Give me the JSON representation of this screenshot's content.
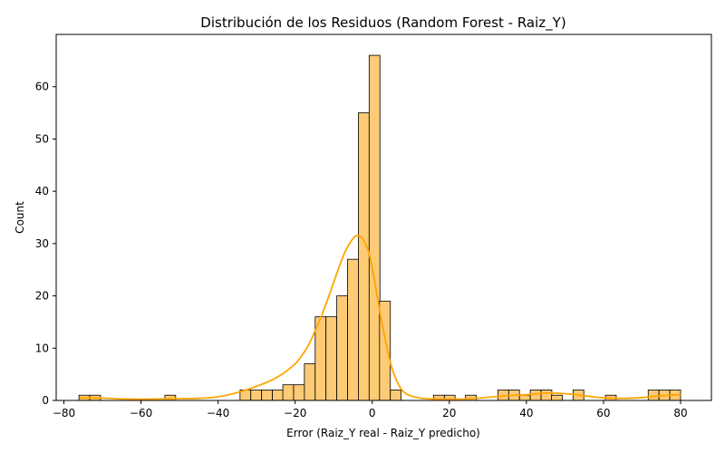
{
  "chart_data": {
    "type": "bar",
    "title": "Distribución de los Residuos (Random Forest - Raiz_Y)",
    "xlabel": "Error (Raiz_Y real - Raiz_Y predicho)",
    "ylabel": "Count",
    "xlim": [
      -82,
      88
    ],
    "ylim": [
      0,
      70
    ],
    "x_ticks": [
      -80,
      -60,
      -40,
      -20,
      0,
      20,
      40,
      60,
      80
    ],
    "y_ticks": [
      0,
      10,
      20,
      30,
      40,
      50,
      60
    ],
    "bin_width": 2.8,
    "bins": [
      {
        "x0": -76.1,
        "count": 1
      },
      {
        "x0": -73.3,
        "count": 1
      },
      {
        "x0": -53.8,
        "count": 1
      },
      {
        "x0": -34.3,
        "count": 2
      },
      {
        "x0": -31.5,
        "count": 2
      },
      {
        "x0": -28.7,
        "count": 2
      },
      {
        "x0": -25.9,
        "count": 2
      },
      {
        "x0": -23.2,
        "count": 3
      },
      {
        "x0": -20.4,
        "count": 3
      },
      {
        "x0": -17.6,
        "count": 7
      },
      {
        "x0": -14.8,
        "count": 16
      },
      {
        "x0": -12.0,
        "count": 16
      },
      {
        "x0": -9.2,
        "count": 20
      },
      {
        "x0": -6.4,
        "count": 27
      },
      {
        "x0": -3.6,
        "count": 55
      },
      {
        "x0": -0.8,
        "count": 66
      },
      {
        "x0": 1.9,
        "count": 19
      },
      {
        "x0": 4.7,
        "count": 2
      },
      {
        "x0": 15.9,
        "count": 1
      },
      {
        "x0": 18.7,
        "count": 1
      },
      {
        "x0": 24.2,
        "count": 1
      },
      {
        "x0": 32.6,
        "count": 2
      },
      {
        "x0": 35.4,
        "count": 2
      },
      {
        "x0": 38.2,
        "count": 1
      },
      {
        "x0": 41.0,
        "count": 2
      },
      {
        "x0": 43.8,
        "count": 2
      },
      {
        "x0": 46.5,
        "count": 1
      },
      {
        "x0": 52.1,
        "count": 2
      },
      {
        "x0": 60.5,
        "count": 1
      },
      {
        "x0": 71.6,
        "count": 2
      },
      {
        "x0": 74.4,
        "count": 2
      },
      {
        "x0": 77.2,
        "count": 2
      }
    ],
    "kde": {
      "x": [
        -76,
        -70,
        -65,
        -60,
        -55,
        -50,
        -45,
        -40,
        -35,
        -30,
        -25,
        -20,
        -17,
        -15,
        -13,
        -11,
        -9,
        -7,
        -5,
        -4,
        -3,
        -2,
        -1,
        0,
        1,
        2,
        3,
        5,
        7,
        9,
        12,
        15,
        20,
        25,
        30,
        35,
        40,
        45,
        50,
        55,
        60,
        65,
        70,
        75,
        80
      ],
      "y": [
        0.5,
        0.45,
        0.3,
        0.25,
        0.3,
        0.35,
        0.4,
        0.7,
        1.5,
        2.7,
        4.3,
        7.0,
        10.0,
        13.0,
        16.5,
        20.5,
        24.7,
        28.5,
        31.0,
        31.5,
        31.3,
        30.3,
        28.6,
        25.3,
        21.2,
        17.0,
        13.0,
        6.5,
        2.8,
        1.2,
        0.5,
        0.3,
        0.25,
        0.3,
        0.6,
        0.9,
        1.1,
        1.4,
        1.3,
        0.9,
        0.5,
        0.4,
        0.55,
        0.9,
        1.1
      ]
    },
    "colors": {
      "bar_fill": "#fdca75",
      "bar_edge": "#000000",
      "kde_line": "#ffa500"
    },
    "grid": false,
    "legend": "none"
  }
}
